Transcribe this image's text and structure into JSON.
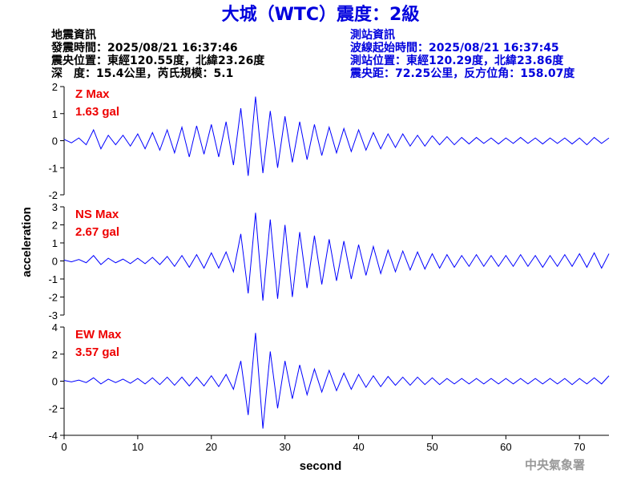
{
  "header": {
    "title": "大城（WTC）震度：2級",
    "quake": [
      "地震資訊",
      "發震時間：2025/08/21 16:37:46",
      "震央位置：東經120.55度，北緯23.26度",
      "深　度：15.4公里，芮氏規模：5.1"
    ],
    "station": [
      "測站資訊",
      "波線起始時間：2025/08/21 16:37:45",
      "測站位置：東經120.29度，北緯23.86度",
      "震央距：72.25公里，反方位角：158.07度"
    ]
  },
  "y_label": "acceleration",
  "x_label": "second",
  "watermark": "中央氣象署",
  "chart_data": [
    {
      "type": "line",
      "annotation": [
        "Z Max",
        "1.63 gal"
      ],
      "color": "#0000ff",
      "xlim": [
        0,
        74
      ],
      "ylim": [
        -2,
        2
      ],
      "yticks": [
        -2,
        -1,
        0,
        1,
        2
      ],
      "x": [
        0,
        1,
        2,
        3,
        4,
        5,
        6,
        7,
        8,
        9,
        10,
        11,
        12,
        13,
        14,
        15,
        16,
        17,
        18,
        19,
        20,
        21,
        22,
        23,
        24,
        25,
        26,
        27,
        28,
        29,
        30,
        31,
        32,
        33,
        34,
        35,
        36,
        37,
        38,
        39,
        40,
        41,
        42,
        43,
        44,
        45,
        46,
        47,
        48,
        49,
        50,
        51,
        52,
        53,
        54,
        55,
        56,
        57,
        58,
        59,
        60,
        61,
        62,
        63,
        64,
        65,
        66,
        67,
        68,
        69,
        70,
        71,
        72,
        73,
        74
      ],
      "values": [
        0.05,
        -0.08,
        0.1,
        -0.15,
        0.4,
        -0.3,
        0.2,
        -0.15,
        0.2,
        -0.2,
        0.25,
        -0.3,
        0.3,
        -0.35,
        0.4,
        -0.45,
        0.5,
        -0.6,
        0.55,
        -0.5,
        0.6,
        -0.6,
        0.7,
        -0.9,
        1.2,
        -1.3,
        1.63,
        -1.2,
        1.1,
        -1.0,
        0.9,
        -0.8,
        0.7,
        -0.7,
        0.6,
        -0.55,
        0.5,
        -0.45,
        0.45,
        -0.4,
        0.4,
        -0.35,
        0.3,
        -0.3,
        0.25,
        -0.25,
        0.25,
        -0.2,
        0.2,
        -0.2,
        0.18,
        -0.15,
        0.15,
        -0.15,
        0.12,
        -0.12,
        0.12,
        -0.1,
        0.1,
        -0.12,
        0.1,
        -0.1,
        0.12,
        -0.1,
        0.1,
        -0.12,
        0.1,
        -0.1,
        0.1,
        -0.12,
        0.1,
        -0.15,
        0.12,
        -0.1,
        0.1
      ]
    },
    {
      "type": "line",
      "annotation": [
        "NS Max",
        "2.67 gal"
      ],
      "color": "#0000ff",
      "xlim": [
        0,
        74
      ],
      "ylim": [
        -3,
        3
      ],
      "yticks": [
        -3,
        -2,
        -1,
        0,
        1,
        2,
        3
      ],
      "x": [
        0,
        1,
        2,
        3,
        4,
        5,
        6,
        7,
        8,
        9,
        10,
        11,
        12,
        13,
        14,
        15,
        16,
        17,
        18,
        19,
        20,
        21,
        22,
        23,
        24,
        25,
        26,
        27,
        28,
        29,
        30,
        31,
        32,
        33,
        34,
        35,
        36,
        37,
        38,
        39,
        40,
        41,
        42,
        43,
        44,
        45,
        46,
        47,
        48,
        49,
        50,
        51,
        52,
        53,
        54,
        55,
        56,
        57,
        58,
        59,
        60,
        61,
        62,
        63,
        64,
        65,
        66,
        67,
        68,
        69,
        70,
        71,
        72,
        73,
        74
      ],
      "values": [
        0.05,
        -0.05,
        0.08,
        -0.1,
        0.3,
        -0.2,
        0.15,
        -0.1,
        0.1,
        -0.15,
        0.15,
        -0.15,
        0.2,
        -0.2,
        0.25,
        -0.3,
        0.3,
        -0.35,
        0.35,
        -0.4,
        0.45,
        -0.4,
        0.5,
        -0.6,
        1.5,
        -1.8,
        2.67,
        -2.2,
        2.3,
        -2.1,
        2.0,
        -2.0,
        1.6,
        -1.5,
        1.4,
        -1.3,
        1.2,
        -1.1,
        1.1,
        -1.0,
        0.9,
        -0.8,
        0.8,
        -0.7,
        0.6,
        -0.6,
        0.55,
        -0.5,
        0.5,
        -0.45,
        0.4,
        -0.4,
        0.35,
        -0.35,
        0.3,
        -0.3,
        0.35,
        -0.3,
        0.3,
        -0.3,
        0.3,
        -0.3,
        0.35,
        -0.3,
        0.3,
        -0.35,
        0.3,
        -0.3,
        0.35,
        -0.3,
        0.4,
        -0.35,
        0.45,
        -0.4,
        0.4
      ]
    },
    {
      "type": "line",
      "annotation": [
        "EW Max",
        "3.57 gal"
      ],
      "color": "#0000ff",
      "xlim": [
        0,
        74
      ],
      "ylim": [
        -4,
        4
      ],
      "yticks": [
        -4,
        -2,
        0,
        2,
        4
      ],
      "xticks": [
        0,
        10,
        20,
        30,
        40,
        50,
        60,
        70
      ],
      "x": [
        0,
        1,
        2,
        3,
        4,
        5,
        6,
        7,
        8,
        9,
        10,
        11,
        12,
        13,
        14,
        15,
        16,
        17,
        18,
        19,
        20,
        21,
        22,
        23,
        24,
        25,
        26,
        27,
        28,
        29,
        30,
        31,
        32,
        33,
        34,
        35,
        36,
        37,
        38,
        39,
        40,
        41,
        42,
        43,
        44,
        45,
        46,
        47,
        48,
        49,
        50,
        51,
        52,
        53,
        54,
        55,
        56,
        57,
        58,
        59,
        60,
        61,
        62,
        63,
        64,
        65,
        66,
        67,
        68,
        69,
        70,
        71,
        72,
        73,
        74
      ],
      "values": [
        0.05,
        -0.05,
        0.08,
        -0.1,
        0.25,
        -0.2,
        0.15,
        -0.1,
        0.15,
        -0.15,
        0.2,
        -0.2,
        0.25,
        -0.25,
        0.3,
        -0.3,
        0.3,
        -0.35,
        0.3,
        -0.35,
        0.4,
        -0.4,
        0.5,
        -0.6,
        1.5,
        -2.5,
        3.57,
        -3.5,
        2.2,
        -2.0,
        1.5,
        -1.3,
        1.2,
        -1.0,
        0.9,
        -0.8,
        0.8,
        -0.7,
        0.6,
        -0.6,
        0.5,
        -0.45,
        0.4,
        -0.4,
        0.35,
        -0.3,
        0.3,
        -0.3,
        0.3,
        -0.25,
        0.25,
        -0.25,
        0.2,
        -0.2,
        0.2,
        -0.2,
        0.2,
        -0.2,
        0.2,
        -0.2,
        0.2,
        -0.2,
        0.2,
        -0.2,
        0.2,
        -0.2,
        0.2,
        -0.2,
        0.2,
        -0.25,
        0.2,
        -0.2,
        0.25,
        -0.2,
        0.4
      ]
    }
  ]
}
